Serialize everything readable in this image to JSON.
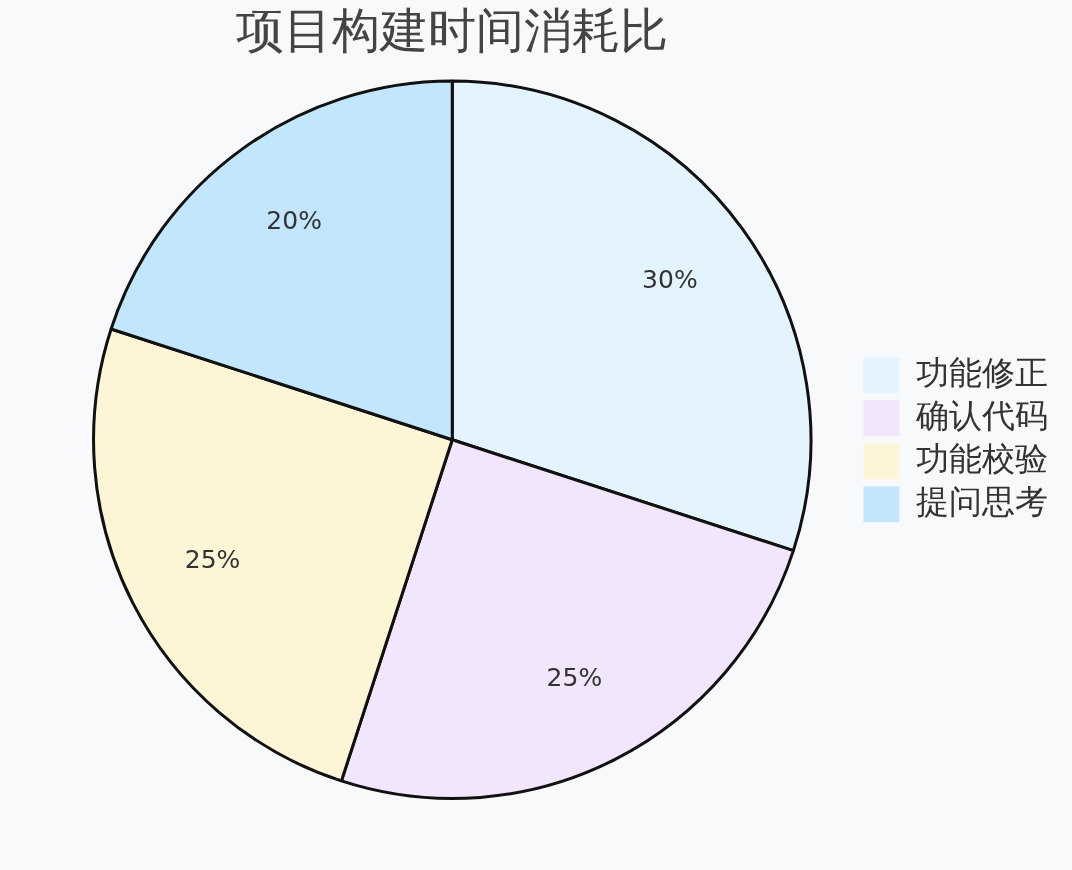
{
  "chart_data": {
    "type": "pie",
    "title": "项目构建时间消耗比",
    "categories": [
      "功能修正",
      "确认代码",
      "功能校验",
      "提问思考"
    ],
    "values": [
      30,
      25,
      25,
      20
    ],
    "colors": [
      "#e3f4fe",
      "#f1e6fc",
      "#fcf5d6",
      "#c2e7fd"
    ],
    "value_labels": [
      "30%",
      "25%",
      "25%",
      "20%"
    ],
    "legend": "right"
  }
}
